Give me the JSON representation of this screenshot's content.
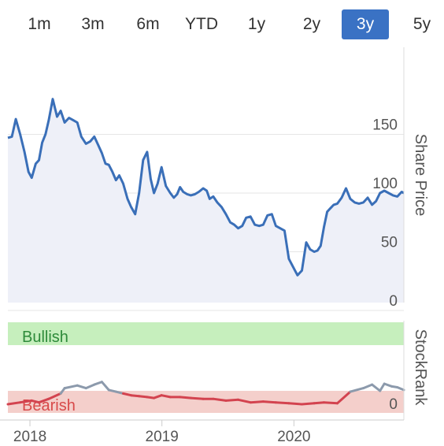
{
  "range_selector": {
    "buttons": [
      "1m",
      "3m",
      "6m",
      "YTD",
      "1y",
      "2y",
      "3y",
      "5y"
    ],
    "active": "3y"
  },
  "colors": {
    "price_line": "#3a6fb8",
    "price_fill": "#eef0f8",
    "bullish_zone": "#c6efbd",
    "bearish_zone": "#f4cfcb",
    "bullish_text": "#2e8b3a",
    "bearish_text": "#d84a4a",
    "rank_line_low": "#d3434f",
    "rank_line_mid": "#8c9aac",
    "active_button": "#3a72c4"
  },
  "chart_data": [
    {
      "type": "area",
      "ylabel": "Share Price",
      "ylim": [
        0,
        200
      ],
      "yticks": [
        0,
        50,
        100,
        150
      ],
      "xlim": [
        "2017-11-01",
        "2020-10-31"
      ],
      "xticks": [
        "2018",
        "2019",
        "2020"
      ],
      "series": [
        {
          "x": [
            "2017-11-01",
            "2017-11-12",
            "2017-11-23",
            "2017-12-05",
            "2017-12-17",
            "2017-12-28",
            "2018-01-06",
            "2018-01-17",
            "2018-01-26",
            "2018-02-04",
            "2018-02-13",
            "2018-02-22",
            "2018-03-05",
            "2018-03-17",
            "2018-03-27",
            "2018-04-07",
            "2018-04-19",
            "2018-05-01",
            "2018-05-12",
            "2018-05-23",
            "2018-06-05",
            "2018-06-17",
            "2018-06-28",
            "2018-07-10",
            "2018-07-19",
            "2018-07-29",
            "2018-08-07",
            "2018-08-17",
            "2018-08-27",
            "2018-09-05",
            "2018-09-16",
            "2018-09-28",
            "2018-10-08",
            "2018-10-19",
            "2018-10-30",
            "2018-11-10",
            "2018-11-21",
            "2018-12-01",
            "2018-12-10",
            "2018-12-20",
            "2018-12-31",
            "2019-01-12",
            "2019-01-24",
            "2019-02-03",
            "2019-02-12",
            "2019-02-20",
            "2019-03-01",
            "2019-03-12",
            "2019-03-22",
            "2019-04-02",
            "2019-04-13",
            "2019-04-25",
            "2019-05-05",
            "2019-05-13",
            "2019-05-23",
            "2019-06-03",
            "2019-06-15",
            "2019-06-27",
            "2019-07-09",
            "2019-07-20",
            "2019-07-31",
            "2019-08-11",
            "2019-08-22",
            "2019-09-03",
            "2019-09-15",
            "2019-09-27",
            "2019-10-08",
            "2019-10-20",
            "2019-11-01",
            "2019-11-12",
            "2019-11-24",
            "2019-12-06",
            "2019-12-18",
            "2019-12-30",
            "2020-01-11",
            "2020-01-23",
            "2020-02-04",
            "2020-02-15",
            "2020-02-26",
            "2020-03-06",
            "2020-03-15",
            "2020-03-24",
            "2020-04-02",
            "2020-04-11",
            "2020-04-20",
            "2020-04-30",
            "2020-05-12",
            "2020-05-24",
            "2020-06-05",
            "2020-06-17",
            "2020-06-29",
            "2020-07-11",
            "2020-07-23",
            "2020-08-04",
            "2020-08-15",
            "2020-08-26",
            "2020-09-07",
            "2020-09-19",
            "2020-10-01",
            "2020-10-13",
            "2020-10-25",
            "2020-10-31"
          ],
          "y": [
            147,
            148,
            163,
            150,
            135,
            118,
            113,
            125,
            128,
            143,
            150,
            162,
            180,
            165,
            170,
            160,
            164,
            162,
            160,
            148,
            142,
            144,
            148,
            140,
            134,
            125,
            124,
            118,
            111,
            115,
            108,
            95,
            88,
            82,
            100,
            128,
            135,
            112,
            100,
            108,
            122,
            106,
            100,
            96,
            99,
            105,
            101,
            99,
            98,
            99,
            101,
            104,
            102,
            95,
            97,
            92,
            88,
            82,
            75,
            73,
            70,
            72,
            79,
            80,
            73,
            72,
            73,
            81,
            82,
            72,
            70,
            68,
            44,
            37,
            30,
            34,
            58,
            52,
            50,
            51,
            55,
            71,
            84,
            87,
            90,
            91,
            96,
            104,
            95,
            92,
            91,
            92,
            96,
            90,
            93,
            100,
            102,
            100,
            98,
            97,
            101,
            100
          ]
        }
      ]
    },
    {
      "type": "area",
      "ylabel": "StockRank",
      "ylim": [
        0,
        100
      ],
      "yticks": [
        0
      ],
      "zones": [
        {
          "label": "Bullish",
          "from": 80,
          "to": 100
        },
        {
          "label": "Bearish",
          "from": 0,
          "to": 20
        }
      ],
      "series": [
        {
          "x": [
            "2017-11-01",
            "2017-12-05",
            "2018-01-06",
            "2018-01-26",
            "2018-02-22",
            "2018-03-27",
            "2018-04-07",
            "2018-05-12",
            "2018-06-05",
            "2018-06-28",
            "2018-07-19",
            "2018-08-07",
            "2018-08-27",
            "2018-09-16",
            "2018-10-08",
            "2018-10-30",
            "2018-11-21",
            "2018-12-10",
            "2018-12-31",
            "2019-01-24",
            "2019-02-20",
            "2019-03-22",
            "2019-04-25",
            "2019-05-23",
            "2019-06-27",
            "2019-07-31",
            "2019-09-03",
            "2019-10-08",
            "2019-11-12",
            "2019-12-18",
            "2020-01-23",
            "2020-02-26",
            "2020-03-24",
            "2020-04-30",
            "2020-06-05",
            "2020-07-11",
            "2020-08-04",
            "2020-08-26",
            "2020-09-07",
            "2020-09-28",
            "2020-10-13",
            "2020-10-31"
          ],
          "y": [
            8,
            10,
            12,
            10,
            14,
            20,
            26,
            29,
            26,
            30,
            33,
            24,
            22,
            20,
            18,
            17,
            16,
            15,
            18,
            16,
            16,
            15,
            14,
            14,
            12,
            13,
            10,
            11,
            10,
            9,
            8,
            9,
            10,
            9,
            22,
            26,
            30,
            23,
            31,
            28,
            27,
            24
          ]
        }
      ]
    }
  ]
}
